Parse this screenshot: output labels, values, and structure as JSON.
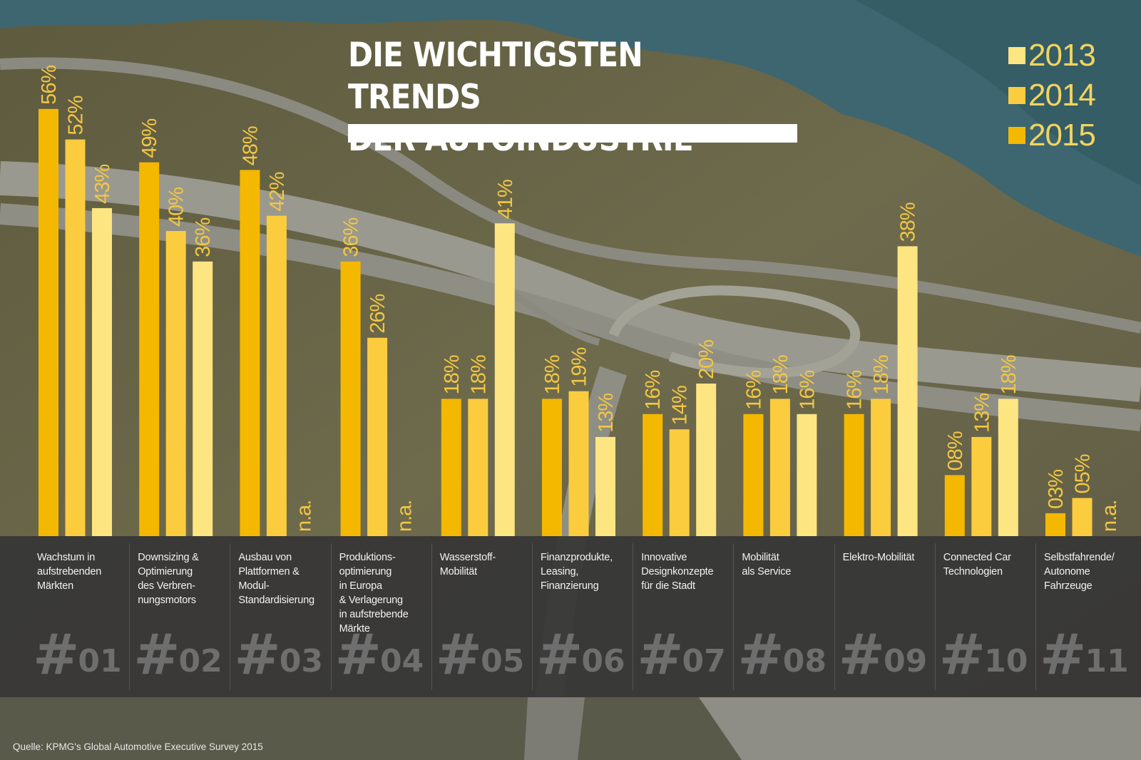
{
  "title_line1": "DIE WICHTIGSTEN TRENDS",
  "title_line2": "DER AUTOINDUSTRIE",
  "source": "Quelle: KPMG's Global Automotive Executive Survey 2015",
  "colors": {
    "2015": "#f5b800",
    "2014": "#fbcc3e",
    "2013": "#fde582",
    "value_text": "#f2c744",
    "band": "#363636"
  },
  "chart_data": {
    "type": "bar",
    "title": "DIE WICHTIGSTEN TRENDS DER AUTOINDUSTRIE",
    "value_suffix": "%",
    "missing_label": "n.a.",
    "ylim": [
      0,
      60
    ],
    "legend": [
      "2013",
      "2014",
      "2015"
    ],
    "series": [
      {
        "name": "2015",
        "values": [
          56,
          49,
          48,
          36,
          18,
          18,
          16,
          16,
          16,
          8,
          3
        ],
        "labels": [
          "56%",
          "49%",
          "48%",
          "36%",
          "18%",
          "18%",
          "16%",
          "16%",
          "16%",
          "08%",
          "03%"
        ]
      },
      {
        "name": "2014",
        "values": [
          52,
          40,
          42,
          26,
          18,
          19,
          14,
          18,
          18,
          13,
          5
        ],
        "labels": [
          "52%",
          "40%",
          "42%",
          "26%",
          "18%",
          "19%",
          "14%",
          "18%",
          "18%",
          "13%",
          "05%"
        ]
      },
      {
        "name": "2013",
        "values": [
          43,
          36,
          null,
          null,
          41,
          13,
          20,
          16,
          38,
          18,
          null
        ],
        "labels": [
          "43%",
          "36%",
          "n.a.",
          "n.a.",
          "41%",
          "13%",
          "20%",
          "16%",
          "38%",
          "18%",
          "n.a."
        ]
      }
    ],
    "categories": [
      {
        "num": "01",
        "label": [
          "Wachstum in",
          "aufstrebenden",
          "Märkten"
        ]
      },
      {
        "num": "02",
        "label": [
          "Downsizing &",
          "Optimierung",
          "des Verbren-",
          "nungsmotors"
        ]
      },
      {
        "num": "03",
        "label": [
          "Ausbau von",
          "Plattformen &",
          "Modul-",
          "Standardisierung"
        ]
      },
      {
        "num": "04",
        "label": [
          "Produktions-",
          "optimierung",
          "in Europa",
          "& Verlagerung",
          "in aufstrebende",
          "Märkte"
        ]
      },
      {
        "num": "05",
        "label": [
          "Wasserstoff-",
          "Mobilität"
        ]
      },
      {
        "num": "06",
        "label": [
          "Finanzprodukte,",
          "Leasing,",
          "Finanzierung"
        ]
      },
      {
        "num": "07",
        "label": [
          "Innovative",
          "Designkonzepte",
          "für die Stadt"
        ]
      },
      {
        "num": "08",
        "label": [
          "Mobilität",
          "als Service"
        ]
      },
      {
        "num": "09",
        "label": [
          "Elektro-Mobilität"
        ]
      },
      {
        "num": "10",
        "label": [
          "Connected Car",
          "Technologien"
        ]
      },
      {
        "num": "11",
        "label": [
          "Selbstfahrende/",
          "Autonome",
          "Fahrzeuge"
        ]
      }
    ]
  }
}
